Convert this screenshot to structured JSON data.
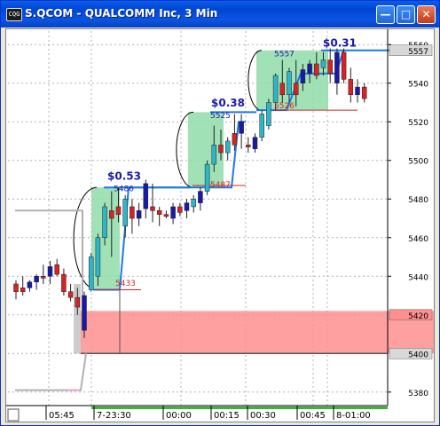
{
  "window": {
    "icon": "chart-window-icon",
    "title": "S.QCOM - QUALCOMM Inc, 3 Min",
    "buttons": [
      "minimize-icon",
      "maximize-icon",
      "close-icon"
    ]
  },
  "colors": {
    "up_candle": "#2fb5c8",
    "down_candle": "#d42424",
    "blue_candle": "#1a1aa8",
    "zone_green": "#8fdca9",
    "zone_red": "#ff8f8f",
    "trend_line": "#1e78e6",
    "grid": "#b0b0b0"
  },
  "chart_data": {
    "type": "candlestick",
    "title": "S.QCOM - QUALCOMM Inc, 3 Min",
    "y_ticks": [
      5380,
      5400,
      5420,
      5440,
      5460,
      5480,
      5500,
      5520,
      5540,
      5557,
      5560
    ],
    "y_range": [
      5373,
      5567
    ],
    "price_badges": [
      {
        "label": "5557",
        "value": 5557,
        "style": "dark"
      },
      {
        "label": "5420",
        "value": 5420,
        "style": "red"
      },
      {
        "label": "5400",
        "value": 5400,
        "style": "dark"
      }
    ],
    "x_labels": [
      "05:45",
      "7-23:30",
      "00:00",
      "00:15",
      "00:30",
      "00:45",
      "8-01:00"
    ],
    "candles": [
      {
        "o": 5432,
        "h": 5438,
        "l": 5428,
        "c": 5436,
        "color": "down"
      },
      {
        "o": 5434,
        "h": 5440,
        "l": 5430,
        "c": 5432,
        "color": "down"
      },
      {
        "o": 5434,
        "h": 5438,
        "l": 5432,
        "c": 5437,
        "color": "blue"
      },
      {
        "o": 5437,
        "h": 5441,
        "l": 5433,
        "c": 5440,
        "color": "blue"
      },
      {
        "o": 5440,
        "h": 5446,
        "l": 5436,
        "c": 5439,
        "color": "down"
      },
      {
        "o": 5440,
        "h": 5448,
        "l": 5436,
        "c": 5445,
        "color": "blue"
      },
      {
        "o": 5446,
        "h": 5449,
        "l": 5440,
        "c": 5441,
        "color": "down"
      },
      {
        "o": 5441,
        "h": 5444,
        "l": 5430,
        "c": 5432,
        "color": "down"
      },
      {
        "o": 5432,
        "h": 5436,
        "l": 5427,
        "c": 5429,
        "color": "down"
      },
      {
        "o": 5429,
        "h": 5434,
        "l": 5420,
        "c": 5424,
        "color": "down"
      },
      {
        "o": 5412,
        "h": 5432,
        "l": 5408,
        "c": 5430,
        "color": "blue"
      },
      {
        "o": 5433,
        "h": 5452,
        "l": 5432,
        "c": 5450,
        "color": "up"
      },
      {
        "o": 5440,
        "h": 5462,
        "l": 5435,
        "c": 5460,
        "color": "up"
      },
      {
        "o": 5460,
        "h": 5478,
        "l": 5456,
        "c": 5476,
        "color": "up"
      },
      {
        "o": 5470,
        "h": 5484,
        "l": 5450,
        "c": 5474,
        "color": "down"
      },
      {
        "o": 5476,
        "h": 5486,
        "l": 5468,
        "c": 5472,
        "color": "down"
      },
      {
        "o": 5466,
        "h": 5482,
        "l": 5460,
        "c": 5480,
        "color": "up"
      },
      {
        "o": 5476,
        "h": 5480,
        "l": 5462,
        "c": 5470,
        "color": "down"
      },
      {
        "o": 5470,
        "h": 5478,
        "l": 5466,
        "c": 5474,
        "color": "blue"
      },
      {
        "o": 5475,
        "h": 5490,
        "l": 5470,
        "c": 5488,
        "color": "blue"
      },
      {
        "o": 5474,
        "h": 5488,
        "l": 5468,
        "c": 5476,
        "color": "down"
      },
      {
        "o": 5474,
        "h": 5476,
        "l": 5466,
        "c": 5472,
        "color": "down"
      },
      {
        "o": 5472,
        "h": 5474,
        "l": 5470,
        "c": 5471,
        "color": "down"
      },
      {
        "o": 5470,
        "h": 5478,
        "l": 5467,
        "c": 5476,
        "color": "blue"
      },
      {
        "o": 5476,
        "h": 5478,
        "l": 5471,
        "c": 5473,
        "color": "down"
      },
      {
        "o": 5474,
        "h": 5480,
        "l": 5470,
        "c": 5478,
        "color": "blue"
      },
      {
        "o": 5476,
        "h": 5482,
        "l": 5473,
        "c": 5480,
        "color": "up"
      },
      {
        "o": 5478,
        "h": 5486,
        "l": 5474,
        "c": 5484,
        "color": "blue"
      },
      {
        "o": 5484,
        "h": 5500,
        "l": 5482,
        "c": 5498,
        "color": "up"
      },
      {
        "o": 5498,
        "h": 5518,
        "l": 5494,
        "c": 5508,
        "color": "up"
      },
      {
        "o": 5508,
        "h": 5516,
        "l": 5500,
        "c": 5504,
        "color": "down"
      },
      {
        "o": 5504,
        "h": 5512,
        "l": 5500,
        "c": 5510,
        "color": "up"
      },
      {
        "o": 5508,
        "h": 5524,
        "l": 5505,
        "c": 5514,
        "color": "down"
      },
      {
        "o": 5514,
        "h": 5524,
        "l": 5506,
        "c": 5520,
        "color": "blue"
      },
      {
        "o": 5507,
        "h": 5512,
        "l": 5504,
        "c": 5508,
        "color": "down"
      },
      {
        "o": 5506,
        "h": 5514,
        "l": 5504,
        "c": 5512,
        "color": "blue"
      },
      {
        "o": 5512,
        "h": 5526,
        "l": 5510,
        "c": 5524,
        "color": "up"
      },
      {
        "o": 5518,
        "h": 5532,
        "l": 5516,
        "c": 5530,
        "color": "up"
      },
      {
        "o": 5530,
        "h": 5545,
        "l": 5526,
        "c": 5544,
        "color": "up"
      },
      {
        "o": 5540,
        "h": 5552,
        "l": 5530,
        "c": 5534,
        "color": "down"
      },
      {
        "o": 5534,
        "h": 5548,
        "l": 5530,
        "c": 5546,
        "color": "up"
      },
      {
        "o": 5540,
        "h": 5552,
        "l": 5528,
        "c": 5534,
        "color": "down"
      },
      {
        "o": 5540,
        "h": 5550,
        "l": 5536,
        "c": 5547,
        "color": "blue"
      },
      {
        "o": 5545,
        "h": 5552,
        "l": 5540,
        "c": 5550,
        "color": "blue"
      },
      {
        "o": 5550,
        "h": 5556,
        "l": 5542,
        "c": 5544,
        "color": "down"
      },
      {
        "o": 5548,
        "h": 5556,
        "l": 5544,
        "c": 5552,
        "color": "up"
      },
      {
        "o": 5552,
        "h": 5558,
        "l": 5540,
        "c": 5545,
        "color": "down"
      },
      {
        "o": 5540,
        "h": 5558,
        "l": 5534,
        "c": 5556,
        "color": "blue"
      },
      {
        "o": 5556,
        "h": 5558,
        "l": 5540,
        "c": 5542,
        "color": "down"
      },
      {
        "o": 5542,
        "h": 5548,
        "l": 5530,
        "c": 5534,
        "color": "down"
      },
      {
        "o": 5534,
        "h": 5542,
        "l": 5530,
        "c": 5538,
        "color": "blue"
      },
      {
        "o": 5538,
        "h": 5540,
        "l": 5530,
        "c": 5532,
        "color": "down"
      }
    ],
    "annotations": [
      {
        "text": "$0.53",
        "kind": "gain"
      },
      {
        "text": "5486",
        "kind": "price"
      },
      {
        "text": "5433",
        "kind": "price-red"
      },
      {
        "text": "$0.38",
        "kind": "gain"
      },
      {
        "text": "5525",
        "kind": "price"
      },
      {
        "text": "5487",
        "kind": "price-red"
      },
      {
        "text": "$0.31",
        "kind": "gain"
      },
      {
        "text": "5557",
        "kind": "price"
      },
      {
        "text": "5526",
        "kind": "price-red"
      }
    ]
  }
}
